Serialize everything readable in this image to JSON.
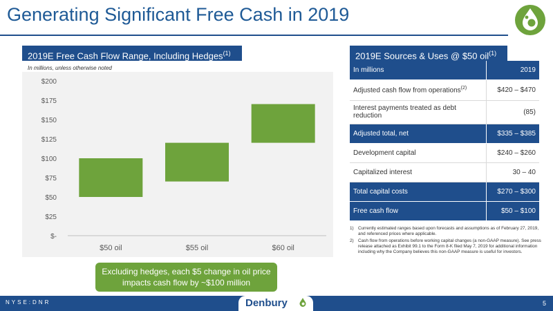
{
  "title": "Generating Significant Free Cash in 2019",
  "left_panel": {
    "header": "2019E Free Cash Flow Range, Including Hedges",
    "header_sup": "(1)",
    "note": "In millions, unless otherwise noted"
  },
  "chart_data": {
    "type": "bar",
    "subtype": "floating-range",
    "categories": [
      "$50 oil",
      "$55 oil",
      "$60 oil"
    ],
    "series": [
      {
        "low": [
          50,
          70,
          120
        ],
        "high": [
          100,
          120,
          170
        ]
      }
    ],
    "y_tick_labels": [
      "$-",
      "$25",
      "$50",
      "$75",
      "$100",
      "$125",
      "$150",
      "$175",
      "$200"
    ],
    "y_ticks": [
      0,
      25,
      50,
      75,
      100,
      125,
      150,
      175,
      200
    ],
    "ylim": [
      0,
      200
    ],
    "grid": false,
    "bar_color": "#6ea33c"
  },
  "callout": "Excluding hedges, each $5 change in oil price impacts cash flow by ~$100 million",
  "right_panel": {
    "header": "2019E Sources & Uses @ $50 oil",
    "header_sup": "(1)",
    "table": {
      "header_label": "In millions",
      "header_value": "2019",
      "rows": [
        {
          "label": "Adjusted cash flow from operations",
          "sup": "(2)",
          "value": "$420 – $470"
        },
        {
          "label": "Interest payments treated as debt reduction",
          "sup": "",
          "value": "(85)"
        },
        {
          "label": "Adjusted total, net",
          "sup": "",
          "value": "$335 – $385"
        },
        {
          "label": "Development capital",
          "sup": "",
          "value": "$240 – $260"
        },
        {
          "label": "Capitalized interest",
          "sup": "",
          "value": "30 – 40"
        },
        {
          "label": "Total capital costs",
          "sup": "",
          "value": "$270 – $300"
        },
        {
          "label": "Free cash flow",
          "sup": "",
          "value": "$50 – $100"
        }
      ]
    },
    "footnotes": [
      {
        "num": "1)",
        "text": "Currently estimated ranges based upon forecasts and assumptions as of February 27, 2019, and referenced prices where applicable."
      },
      {
        "num": "2)",
        "text": "Cash flow from operations before working capital changes (a non-GAAP measure). See press release attached as Exhibit 99.1 to the Form 8-K filed May 7, 2019 for additional information including why the Company believes this non-GAAP measure is useful for investors."
      }
    ]
  },
  "footer": {
    "ticker": "NYSE:DNR",
    "company": "Denbury",
    "page": "5"
  },
  "colors": {
    "brand_blue": "#1f4e8c",
    "title_blue": "#1f5a96",
    "green": "#6ea33c"
  }
}
